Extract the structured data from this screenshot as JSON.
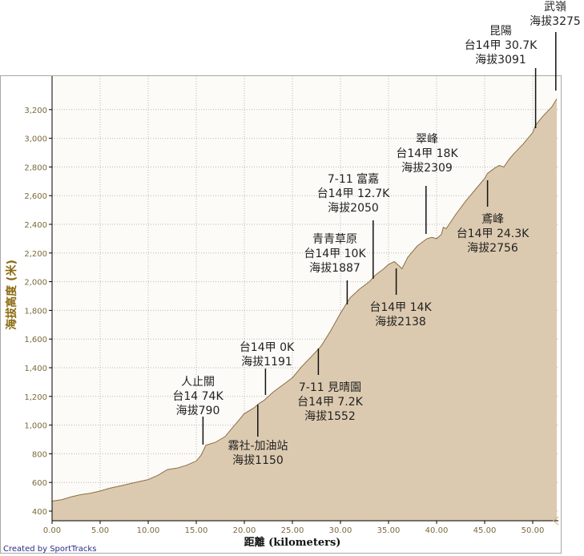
{
  "chart_data": {
    "type": "area",
    "title": "",
    "xlabel": "距離 (kilometers)",
    "ylabel": "海拔高度 (米)",
    "xlim": [
      0,
      53
    ],
    "ylim": [
      330,
      3300
    ],
    "grid": true,
    "x_ticks": [
      "0.00",
      "5.00",
      "10.00",
      "15.00",
      "20.00",
      "25.00",
      "30.00",
      "35.00",
      "40.00",
      "45.00",
      "50.00"
    ],
    "y_ticks": [
      "400",
      "600",
      "800",
      "1,000",
      "1,200",
      "1,400",
      "1,600",
      "1,800",
      "2,000",
      "2,200",
      "2,400",
      "2,600",
      "2,800",
      "3,000",
      "3,200"
    ],
    "series": [
      {
        "name": "elevation",
        "x": [
          0,
          1,
          2,
          3,
          4,
          5,
          6,
          7,
          8,
          9,
          10,
          11,
          12,
          13,
          14,
          15,
          15.5,
          16,
          16.5,
          17,
          17.5,
          18,
          19,
          20,
          21,
          21.5,
          22,
          23,
          24,
          25,
          26,
          27,
          28,
          29,
          30,
          31,
          32,
          33,
          33.7,
          34.5,
          35,
          35.6,
          36.1,
          36.4,
          37,
          38,
          39,
          39.5,
          40,
          40.5,
          40.7,
          41,
          42,
          43,
          44,
          45,
          45.3,
          46,
          46.5,
          47,
          47.5,
          48,
          49,
          50,
          50.3,
          51,
          52,
          52.5
        ],
        "y": [
          470,
          480,
          500,
          515,
          525,
          540,
          560,
          575,
          590,
          605,
          620,
          650,
          690,
          700,
          720,
          750,
          790,
          860,
          870,
          880,
          900,
          920,
          1000,
          1080,
          1120,
          1150,
          1170,
          1230,
          1280,
          1330,
          1410,
          1480,
          1552,
          1660,
          1780,
          1887,
          1950,
          2000,
          2050,
          2090,
          2120,
          2140,
          2110,
          2090,
          2170,
          2250,
          2300,
          2309,
          2300,
          2330,
          2380,
          2370,
          2470,
          2560,
          2640,
          2720,
          2756,
          2790,
          2810,
          2800,
          2850,
          2890,
          2960,
          3040,
          3091,
          3150,
          3220,
          3275
        ]
      }
    ],
    "annotations": [
      {
        "km": 15.7,
        "elev": 790,
        "lines": [
          "人止關",
          "台14 74K",
          "海拔790"
        ]
      },
      {
        "km": 21.4,
        "elev": 1150,
        "lines": [
          "霧社-加油站",
          "海拔1150"
        ]
      },
      {
        "km": 22.2,
        "elev": 1191,
        "lines": [
          "台14甲 0K",
          "海拔1191"
        ]
      },
      {
        "km": 27.7,
        "elev": 1552,
        "lines": [
          "7-11 見晴園",
          "台14甲 7.2K",
          "海拔1552"
        ]
      },
      {
        "km": 30.7,
        "elev": 1887,
        "lines": [
          "青青草原",
          "台14甲 10K",
          "海拔1887"
        ]
      },
      {
        "km": 33.4,
        "elev": 2050,
        "lines": [
          "7-11 富嘉",
          "台14甲 12.7K",
          "海拔2050"
        ]
      },
      {
        "km": 35.8,
        "elev": 2138,
        "lines": [
          "台14甲 14K",
          "海拔2138"
        ]
      },
      {
        "km": 38.9,
        "elev": 2309,
        "lines": [
          "翠峰",
          "台14甲 18K",
          "海拔2309"
        ]
      },
      {
        "km": 45.3,
        "elev": 2756,
        "lines": [
          "鳶峰",
          "台14甲 24.3K",
          "海拔2756"
        ]
      },
      {
        "km": 50.3,
        "elev": 3091,
        "lines": [
          "昆陽",
          "台14甲 30.7K",
          "海拔3091"
        ]
      },
      {
        "km": 52.4,
        "elev": 3275,
        "lines": [
          "武嶺",
          "海拔3275"
        ]
      }
    ],
    "colors": {
      "fill": "#dccab0",
      "line": "#8a6e45",
      "plot_bg": "#fcfbf7",
      "grid": "#b8b8b8"
    }
  },
  "credit": "Created by SportTracks"
}
